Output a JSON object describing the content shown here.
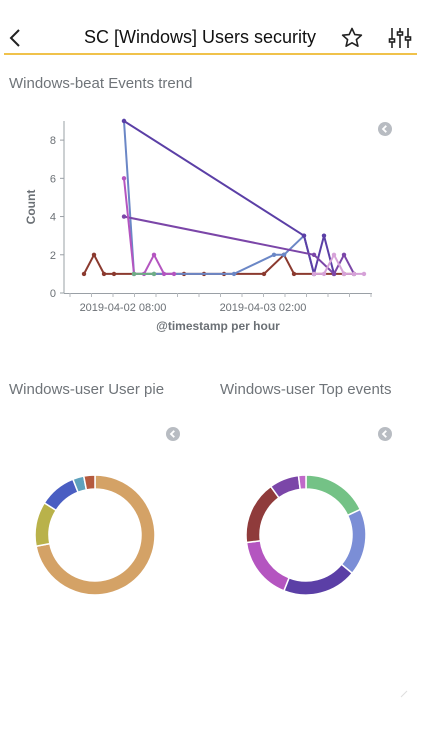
{
  "header": {
    "title": "SC [Windows] Users security",
    "back_icon": "chevron-left-icon",
    "star_icon": "star-icon",
    "filter_icon": "sliders-icon",
    "accent": "#f0c24b"
  },
  "panels": {
    "trend": {
      "title": "Windows-beat Events trend"
    },
    "user_pie": {
      "title": "Windows-user User pie"
    },
    "top_events": {
      "title": "Windows-user Top events"
    }
  },
  "chart_data": [
    {
      "type": "line",
      "title": "",
      "xlabel": "@timestamp per hour",
      "ylabel": "Count",
      "ylim": [
        0,
        9
      ],
      "y_ticks": [
        0,
        2,
        4,
        6,
        8
      ],
      "x_tick_labels": [
        "2019-04-02 08:00",
        "2019-04-03 02:00"
      ],
      "grid": false,
      "x_domain": [
        0,
        28
      ],
      "series": [
        {
          "color": "#8b3a2f",
          "points": [
            [
              0,
              1
            ],
            [
              1,
              2
            ],
            [
              2,
              1
            ],
            [
              3,
              1
            ],
            [
              10,
              1
            ],
            [
              12,
              1
            ],
            [
              14,
              1
            ],
            [
              18,
              1
            ],
            [
              20,
              2
            ],
            [
              21,
              1
            ],
            [
              23,
              1
            ],
            [
              25,
              1
            ],
            [
              26,
              1
            ],
            [
              27,
              1
            ]
          ]
        },
        {
          "color": "#6b87c6",
          "points": [
            [
              4,
              9
            ],
            [
              5,
              1
            ],
            [
              7,
              1
            ],
            [
              15,
              1
            ],
            [
              19,
              2
            ],
            [
              20,
              2
            ],
            [
              22,
              3
            ],
            [
              23,
              1
            ]
          ]
        },
        {
          "color": "#5b3fa6",
          "points": [
            [
              4,
              9
            ],
            [
              22,
              3
            ],
            [
              23,
              1
            ],
            [
              24,
              3
            ],
            [
              25,
              1
            ]
          ]
        },
        {
          "color": "#7b46a8",
          "points": [
            [
              4,
              4
            ],
            [
              23,
              2
            ],
            [
              25,
              1
            ],
            [
              26,
              2
            ],
            [
              27,
              1
            ]
          ]
        },
        {
          "color": "#b455c0",
          "points": [
            [
              4,
              6
            ],
            [
              5,
              1
            ],
            [
              6,
              1
            ],
            [
              7,
              2
            ],
            [
              8,
              1
            ],
            [
              9,
              1
            ]
          ]
        },
        {
          "color": "#d6a2d8",
          "points": [
            [
              23,
              1
            ],
            [
              24,
              1
            ],
            [
              25,
              2
            ],
            [
              26,
              1
            ],
            [
              27,
              1
            ],
            [
              28,
              1
            ]
          ]
        },
        {
          "color": "#6fae86",
          "points": [
            [
              5,
              1
            ],
            [
              7,
              1
            ]
          ]
        }
      ]
    },
    {
      "type": "pie",
      "donut": true,
      "slices": [
        {
          "value": 72,
          "color": "#d4a266"
        },
        {
          "value": 12,
          "color": "#b9b24a"
        },
        {
          "value": 10,
          "color": "#4a5ec2"
        },
        {
          "value": 3,
          "color": "#5ea2bd"
        },
        {
          "value": 3,
          "color": "#b55a3e"
        }
      ]
    },
    {
      "type": "pie",
      "donut": true,
      "slices": [
        {
          "value": 18,
          "color": "#74c286"
        },
        {
          "value": 18,
          "color": "#7b8ed6"
        },
        {
          "value": 20,
          "color": "#5b3fa6"
        },
        {
          "value": 17,
          "color": "#b455c0"
        },
        {
          "value": 17,
          "color": "#8f3b3b"
        },
        {
          "value": 8,
          "color": "#7b46a8"
        },
        {
          "value": 2,
          "color": "#c069c9"
        }
      ]
    }
  ]
}
